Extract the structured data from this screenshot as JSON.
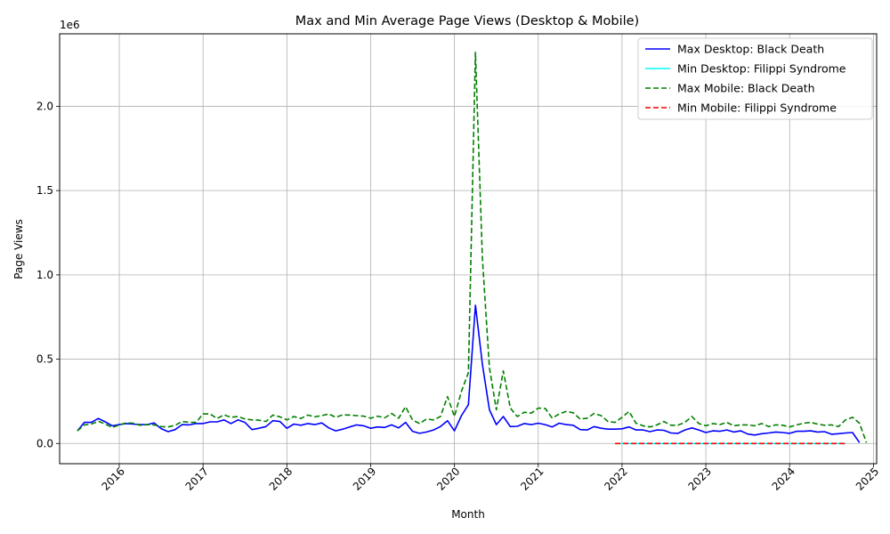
{
  "chart_data": {
    "type": "line",
    "title": "Max and Min Average Page Views (Desktop & Mobile)",
    "xlabel": "Month",
    "ylabel": "Page Views",
    "y_offset_label": "1e6",
    "xlim": [
      "2015-04-15",
      "2025-01-15"
    ],
    "ylim": [
      -120000,
      2430000
    ],
    "x_ticks": [
      "2016",
      "2017",
      "2018",
      "2019",
      "2020",
      "2021",
      "2022",
      "2023",
      "2024",
      "2025"
    ],
    "y_ticks": [
      {
        "value": 0,
        "label": "0.0"
      },
      {
        "value": 500000,
        "label": "0.5"
      },
      {
        "value": 1000000,
        "label": "1.0"
      },
      {
        "value": 1500000,
        "label": "1.5"
      },
      {
        "value": 2000000,
        "label": "2.0"
      }
    ],
    "grid": true,
    "legend_position": "top-right",
    "series": [
      {
        "name": "Max Desktop: Black Death",
        "color": "#0000ff",
        "dash": "solid",
        "start": "2015-07",
        "values": [
          75000,
          125000,
          125000,
          148000,
          128000,
          105000,
          112000,
          118000,
          115000,
          112000,
          112000,
          122000,
          88000,
          70000,
          82000,
          112000,
          110000,
          118000,
          118000,
          128000,
          128000,
          140000,
          118000,
          140000,
          125000,
          82000,
          90000,
          100000,
          135000,
          130000,
          90000,
          115000,
          108000,
          118000,
          112000,
          122000,
          92000,
          75000,
          85000,
          98000,
          110000,
          105000,
          90000,
          98000,
          95000,
          110000,
          92000,
          125000,
          72000,
          60000,
          68000,
          80000,
          100000,
          135000,
          75000,
          165000,
          230000,
          820000,
          470000,
          200000,
          112000,
          160000,
          100000,
          102000,
          118000,
          112000,
          120000,
          112000,
          98000,
          120000,
          112000,
          108000,
          82000,
          80000,
          100000,
          90000,
          85000,
          85000,
          87000,
          98000,
          80000,
          80000,
          70000,
          80000,
          78000,
          62000,
          60000,
          80000,
          92000,
          80000,
          65000,
          75000,
          72000,
          80000,
          68000,
          75000,
          56000,
          50000,
          58000,
          62000,
          68000,
          65000,
          60000,
          72000,
          72000,
          75000,
          68000,
          70000,
          55000,
          58000,
          62000,
          65000,
          5000
        ]
      },
      {
        "name": "Min Desktop: Filippi Syndrome",
        "color": "#00ffff",
        "dash": "solid",
        "start": "2021-12",
        "values": [
          100,
          100,
          100,
          100,
          100,
          100,
          100,
          100,
          100,
          100,
          100,
          100,
          100,
          100,
          100,
          100,
          100,
          100,
          100,
          100,
          100,
          100,
          100,
          100,
          100,
          100,
          100,
          100,
          100,
          100,
          100,
          100,
          100,
          100
        ]
      },
      {
        "name": "Max Mobile: Black Death",
        "color": "#008000",
        "dash": "dashed",
        "start": "2015-07",
        "values": [
          75000,
          110000,
          115000,
          132000,
          115000,
          95000,
          110000,
          122000,
          120000,
          108000,
          112000,
          110000,
          100000,
          98000,
          108000,
          130000,
          125000,
          125000,
          175000,
          175000,
          148000,
          170000,
          155000,
          160000,
          145000,
          140000,
          138000,
          130000,
          168000,
          158000,
          140000,
          160000,
          148000,
          168000,
          158000,
          165000,
          175000,
          155000,
          170000,
          168000,
          165000,
          162000,
          150000,
          162000,
          152000,
          178000,
          150000,
          218000,
          140000,
          118000,
          145000,
          140000,
          160000,
          278000,
          160000,
          310000,
          420000,
          2320000,
          1100000,
          450000,
          200000,
          430000,
          210000,
          160000,
          185000,
          180000,
          210000,
          208000,
          150000,
          175000,
          190000,
          182000,
          145000,
          150000,
          178000,
          165000,
          130000,
          125000,
          155000,
          190000,
          120000,
          105000,
          98000,
          110000,
          130000,
          108000,
          108000,
          125000,
          160000,
          118000,
          105000,
          118000,
          112000,
          125000,
          105000,
          110000,
          110000,
          105000,
          118000,
          100000,
          110000,
          108000,
          98000,
          110000,
          120000,
          125000,
          115000,
          108000,
          110000,
          100000,
          140000,
          155000,
          120000,
          5000
        ]
      },
      {
        "name": "Min Mobile: Filippi Syndrome",
        "color": "#ff0000",
        "dash": "dashed",
        "start": "2021-12",
        "values": [
          100,
          100,
          100,
          100,
          100,
          100,
          100,
          100,
          100,
          100,
          100,
          100,
          100,
          100,
          100,
          100,
          100,
          100,
          100,
          100,
          100,
          100,
          100,
          100,
          100,
          100,
          100,
          100,
          100,
          100,
          100,
          100,
          100,
          100
        ]
      }
    ]
  }
}
